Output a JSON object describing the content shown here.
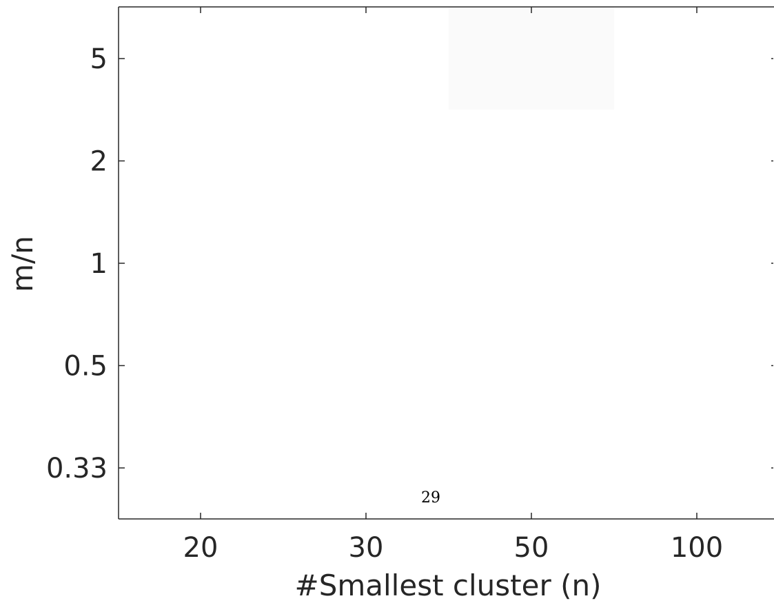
{
  "chart_data": {
    "type": "heatmap",
    "title": "",
    "xlabel": "#Smallest cluster (n)",
    "ylabel": "m/n",
    "x_categories": [
      "20",
      "30",
      "50",
      "100"
    ],
    "y_categories": [
      "5",
      "2",
      "1",
      "0.5",
      "0.33"
    ],
    "color_scale": "grayscale (white = high, dark = low)",
    "values": [
      [
        1,
        1,
        0.98,
        1
      ],
      [
        1,
        1,
        1,
        1
      ],
      [
        1,
        1,
        1,
        1
      ],
      [
        1,
        1,
        1,
        1
      ],
      [
        1,
        1,
        1,
        1
      ]
    ],
    "grid": false
  },
  "page_number": "29",
  "colors": {
    "axis": "#262626",
    "text": "#262626"
  }
}
